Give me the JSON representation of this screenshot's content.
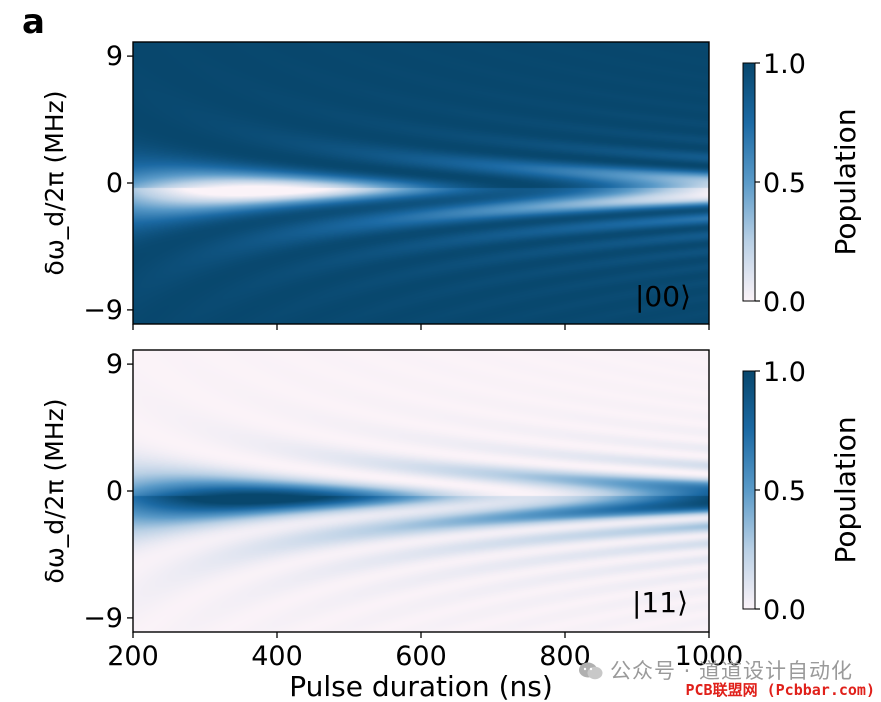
{
  "chart_data": [
    {
      "type": "heatmap",
      "panel_label": "a",
      "state_label": "|00⟩",
      "xlabel": "",
      "ylabel": "δω_d/2π (MHz)",
      "x_ticks": [
        "200",
        "400",
        "600",
        "800",
        "1000"
      ],
      "y_ticks": [
        "9",
        "0",
        "−9"
      ],
      "xlim": [
        200,
        1000
      ],
      "ylim": [
        -10,
        10
      ],
      "colorbar": {
        "label": "Population",
        "ticks": [
          "0.0",
          "0.5",
          "1.0"
        ],
        "range": [
          0.0,
          1.0
        ]
      },
      "colors": {
        "low": "#fbf3f8",
        "mid": "#3c86ba",
        "high": "#08476d"
      },
      "values": "P(|00⟩) = 1 − P(|11⟩); drive detuning δω_d vs pulse duration"
    },
    {
      "type": "heatmap",
      "state_label": "|11⟩",
      "xlabel": "Pulse duration (ns)",
      "ylabel": "δω_d/2π (MHz)",
      "x_ticks": [
        "200",
        "400",
        "600",
        "800",
        "1000"
      ],
      "y_ticks": [
        "9",
        "0",
        "−9"
      ],
      "xlim": [
        200,
        1000
      ],
      "ylim": [
        -10,
        10
      ],
      "colorbar": {
        "label": "Population",
        "ticks": [
          "0.0",
          "0.5",
          "1.0"
        ],
        "range": [
          0.0,
          1.0
        ]
      },
      "colors": {
        "low": "#fbf3f8",
        "mid": "#3c86ba",
        "high": "#08476d"
      },
      "values": "P(|11⟩) — Rabi-like chevron pattern centred near 0 MHz"
    }
  ],
  "watermark": {
    "line1": "公众号 · 道道设计自动化",
    "line2": "PCB联盟网 (Pcbbar.com)"
  }
}
